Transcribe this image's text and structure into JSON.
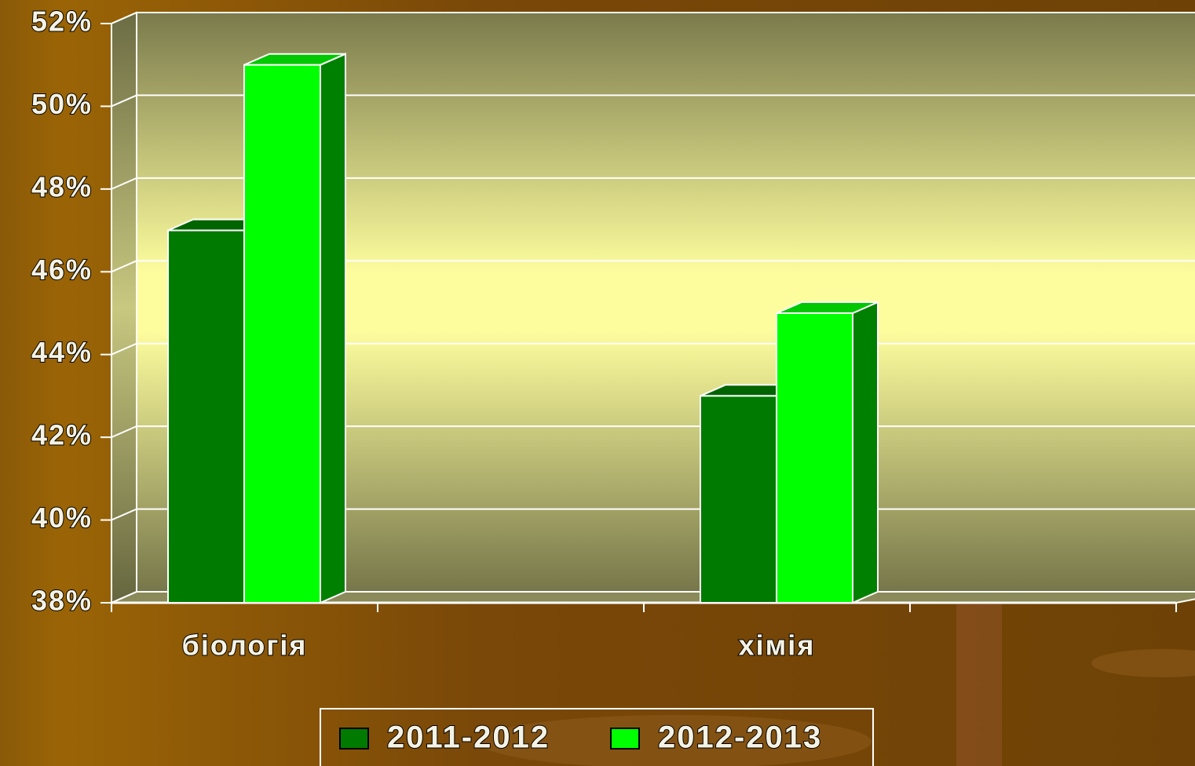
{
  "chart_data": {
    "type": "bar3d",
    "categories": [
      "біологія",
      null,
      "хімія",
      null
    ],
    "series": [
      {
        "name": "2011-2012",
        "color": "#007a00",
        "values": [
          47,
          null,
          43,
          null
        ]
      },
      {
        "name": "2012-2013",
        "color": "#00ff00",
        "values": [
          51,
          null,
          45,
          null
        ]
      }
    ],
    "ylim": [
      38,
      52
    ],
    "yticks": [
      {
        "value": 38,
        "label": "38%"
      },
      {
        "value": 40,
        "label": "40%"
      },
      {
        "value": 42,
        "label": "42%"
      },
      {
        "value": 44,
        "label": "44%"
      },
      {
        "value": 46,
        "label": "46%"
      },
      {
        "value": 48,
        "label": "48%"
      },
      {
        "value": 50,
        "label": "50%"
      },
      {
        "value": 52,
        "label": "52%"
      }
    ],
    "grid": true
  }
}
